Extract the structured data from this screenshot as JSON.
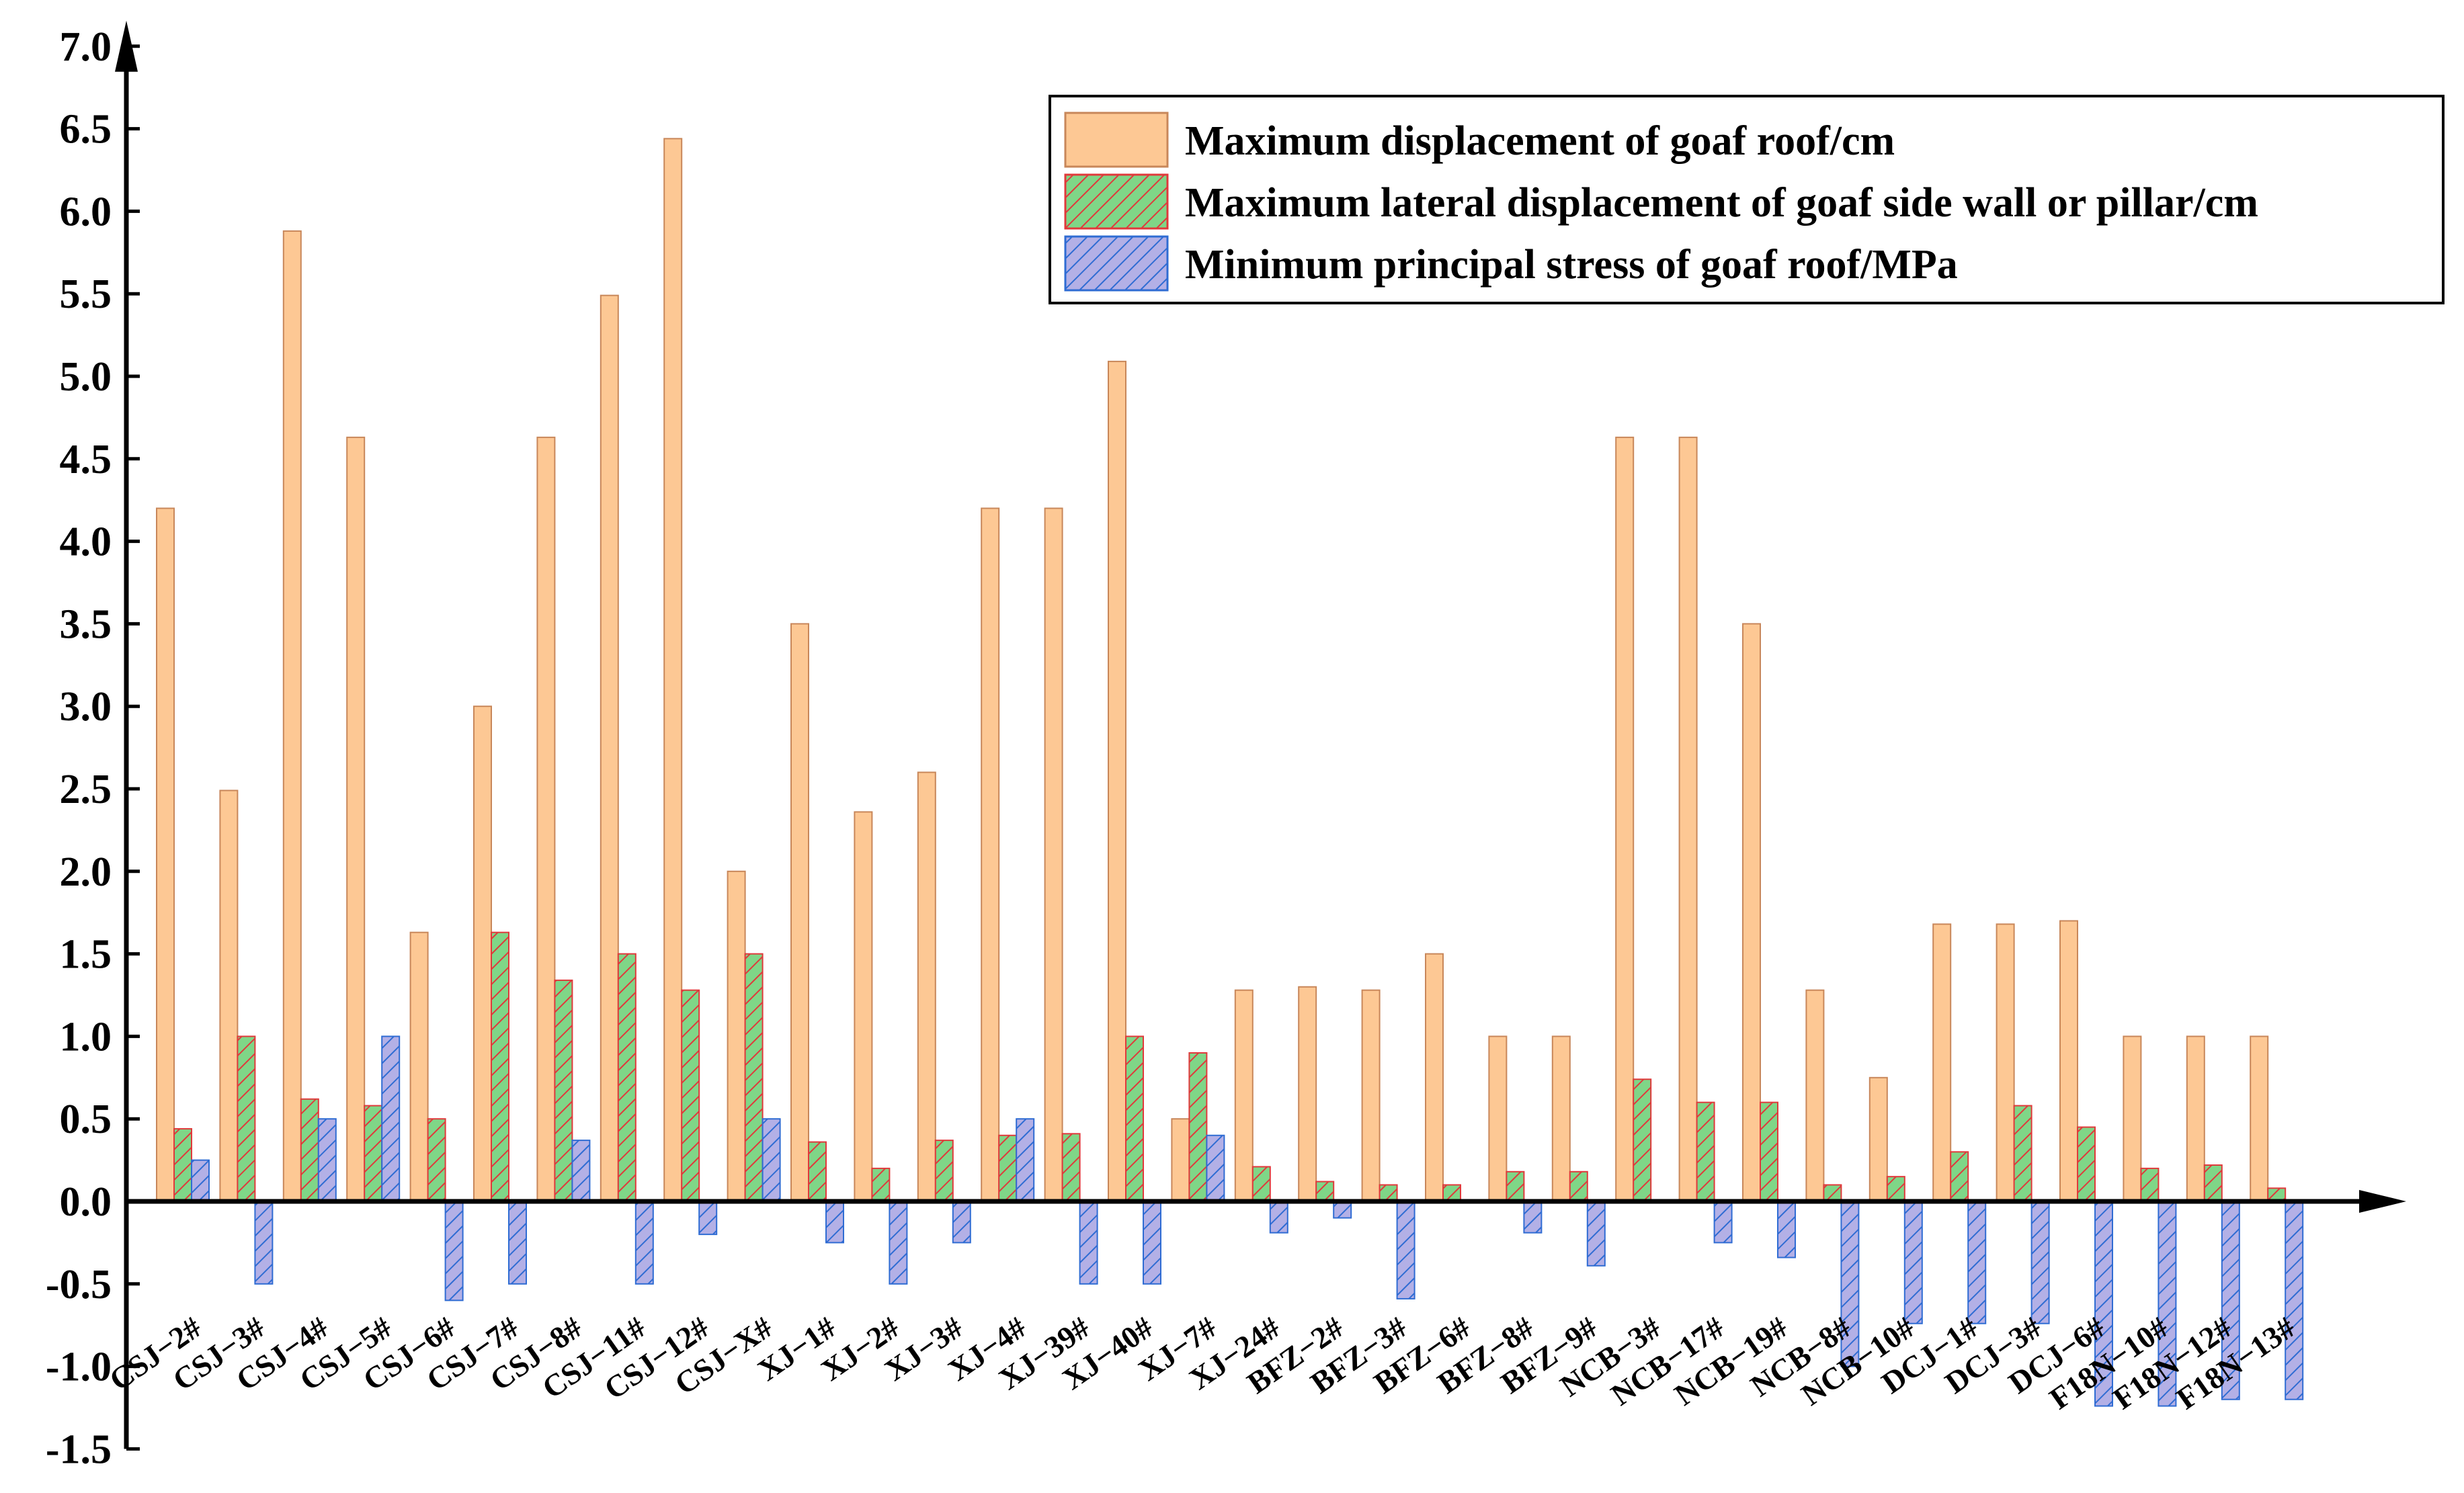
{
  "chart_data": {
    "type": "bar",
    "title": "",
    "xlabel": "",
    "ylabel": "",
    "ylim": [
      -1.5,
      7.0
    ],
    "yticks": [
      -1.5,
      -1.0,
      -0.5,
      0.0,
      0.5,
      1.0,
      1.5,
      2.0,
      2.5,
      3.0,
      3.5,
      4.0,
      4.5,
      5.0,
      5.5,
      6.0,
      6.5,
      7.0
    ],
    "ytick_labels": [
      "-1.5",
      "-1.0",
      "-0.5",
      "0.0",
      "0.5",
      "1.0",
      "1.5",
      "2.0",
      "2.5",
      "3.0",
      "3.5",
      "4.0",
      "4.5",
      "5.0",
      "5.5",
      "6.0",
      "6.5",
      "7.0"
    ],
    "legend_position": "top-right",
    "grid": false,
    "categories": [
      "CSJ−2#",
      "CSJ−3#",
      "CSJ−4#",
      "CSJ−5#",
      "CSJ−6#",
      "CSJ−7#",
      "CSJ−8#",
      "CSJ−11#",
      "CSJ−12#",
      "CSJ−X#",
      "XJ−1#",
      "XJ−2#",
      "XJ−3#",
      "XJ−4#",
      "XJ−39#",
      "XJ−40#",
      "XJ−7#",
      "XJ−24#",
      "BFZ−2#",
      "BFZ−3#",
      "BFZ−6#",
      "BFZ−8#",
      "BFZ−9#",
      "NCB−3#",
      "NCB−17#",
      "NCB−19#",
      "NCB−8#",
      "NCB−10#",
      "DCJ−1#",
      "DCJ−3#",
      "DCJ−6#",
      "F18N−10#",
      "F18N−12#",
      "F18N−13#"
    ],
    "series": [
      {
        "name": "Maximum displacement of goaf roof/cm",
        "color": "#fdc894",
        "edge": "#c8875a",
        "hatch": "none",
        "values": [
          4.2,
          2.49,
          5.88,
          4.63,
          1.63,
          3.0,
          4.63,
          5.49,
          6.44,
          2.0,
          3.5,
          2.36,
          2.6,
          4.2,
          4.2,
          5.09,
          0.5,
          1.28,
          1.3,
          1.28,
          1.5,
          1.0,
          1.0,
          4.63,
          4.63,
          3.5,
          1.28,
          0.75,
          1.68,
          1.68,
          1.7,
          1.0,
          1.0,
          1.0
        ]
      },
      {
        "name": "Maximum lateral displacement of goaf side wall or pillar/cm",
        "color": "#7fd687",
        "edge": "#e0393b",
        "hatch": "#e0393b",
        "values": [
          0.44,
          1.0,
          0.62,
          0.58,
          0.5,
          1.63,
          1.34,
          1.5,
          1.28,
          1.5,
          0.36,
          0.2,
          0.37,
          0.4,
          0.41,
          1.0,
          0.9,
          0.21,
          0.12,
          0.1,
          0.1,
          0.18,
          0.18,
          0.74,
          0.6,
          0.6,
          0.1,
          0.15,
          0.3,
          0.58,
          0.45,
          0.2,
          0.22,
          0.08
        ]
      },
      {
        "name": "Minimum principal stress of goaf roof/MPa",
        "color": "#b3b0e6",
        "edge": "#2f6cd3",
        "hatch": "#2f6cd3",
        "values": [
          0.25,
          -0.5,
          0.5,
          1.0,
          -0.6,
          -0.5,
          0.37,
          -0.5,
          -0.2,
          0.5,
          -0.25,
          -0.5,
          -0.25,
          0.5,
          -0.5,
          -0.5,
          0.4,
          -0.19,
          -0.1,
          -0.59,
          0.0,
          -0.19,
          -0.39,
          0.0,
          -0.25,
          -0.34,
          -1.0,
          -0.74,
          -0.74,
          -0.74,
          -1.24,
          -1.24,
          -1.2,
          -1.2
        ]
      }
    ]
  }
}
